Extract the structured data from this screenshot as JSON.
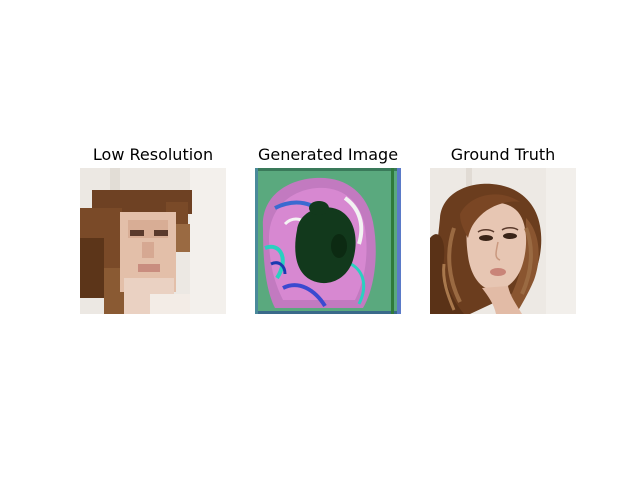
{
  "figure": {
    "panels": [
      {
        "title": "Low Resolution"
      },
      {
        "title": "Generated Image"
      },
      {
        "title": "Ground Truth"
      }
    ]
  },
  "colors": {
    "background": "#ffffff",
    "skin": "#e7c6b3",
    "hair": "#6b3d1e",
    "hair_light": "#9a6a42",
    "wall": "#ede9e4",
    "generated_bg": "#5aa97e",
    "generated_dark": "#123a1c",
    "generated_pink": "#d97ad1"
  }
}
